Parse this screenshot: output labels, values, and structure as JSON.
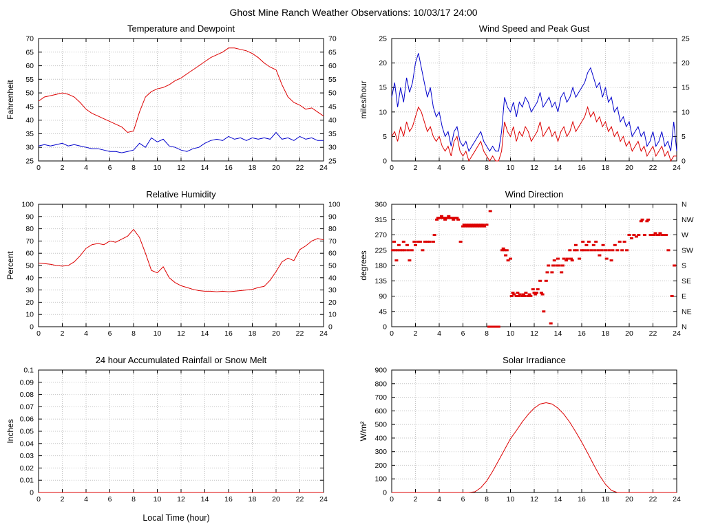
{
  "page_title": "Ghost Mine Ranch Weather Observations: 10/03/17 24:00",
  "x_axis": {
    "min": 0,
    "max": 24,
    "tick_step": 2,
    "label": "Local Time (hour)"
  },
  "colors": {
    "red": "#dd0000",
    "blue": "#0000cc",
    "grid": "#c4c4c4",
    "axis": "#000000"
  },
  "chart_data": [
    {
      "id": "temperature-dewpoint",
      "type": "line",
      "title": "Temperature and Dewpoint",
      "ylabel": "Fahrenheit",
      "ylim": [
        25,
        70
      ],
      "ytick_step": 5,
      "right_labels": "mirror",
      "x_start": 0,
      "x_step": 0.5,
      "series": [
        {
          "name": "temperature",
          "color": "#dd0000",
          "values": [
            47,
            48.5,
            49,
            49.5,
            50,
            49.5,
            48.5,
            46.5,
            44,
            42.5,
            41.5,
            40.5,
            39.5,
            38.5,
            37.5,
            35.5,
            36,
            43,
            48.5,
            50.5,
            51.5,
            52,
            53,
            54.5,
            55.5,
            57,
            58.5,
            60,
            61.5,
            63,
            64,
            65,
            66.5,
            66.5,
            66,
            65.5,
            64.5,
            63,
            61,
            59.5,
            58.5,
            53,
            48.5,
            46.5,
            45.5,
            44,
            44.5,
            43,
            41.5
          ]
        },
        {
          "name": "dewpoint",
          "color": "#0000cc",
          "values": [
            30.5,
            31,
            30.5,
            31,
            31.5,
            30.5,
            31,
            30.5,
            30,
            29.5,
            29.5,
            29,
            28.5,
            28.5,
            28,
            28.5,
            29,
            31.5,
            30,
            33.5,
            32,
            33,
            30.5,
            30,
            29,
            28.5,
            29.5,
            30,
            31.5,
            32.5,
            33,
            32.5,
            34,
            33,
            33.5,
            32.5,
            33.5,
            33,
            33.5,
            33,
            35.5,
            33,
            33.5,
            32.5,
            34,
            33,
            33.5,
            32.5,
            32.5
          ]
        }
      ]
    },
    {
      "id": "wind-speed-gust",
      "type": "line",
      "title": "Wind Speed and Peak Gust",
      "ylabel": "miles/hour",
      "ylim": [
        0,
        25
      ],
      "ytick_step": 5,
      "right_labels": "mirror",
      "x_start": 0,
      "x_step": 0.25,
      "series": [
        {
          "name": "peak-gust",
          "color": "#0000cc",
          "values": [
            13,
            16,
            11,
            15,
            12,
            17,
            14,
            16,
            20,
            22,
            19,
            16,
            13,
            15,
            11,
            9,
            10,
            7,
            5,
            6,
            3,
            6,
            7,
            4,
            3,
            4,
            2,
            3,
            4,
            5,
            6,
            4,
            3,
            2,
            3,
            2,
            2,
            6,
            13,
            11,
            10,
            12,
            9,
            12,
            11,
            13,
            12,
            10,
            11,
            12,
            14,
            11,
            12,
            13,
            11,
            12,
            10,
            13,
            14,
            12,
            13,
            15,
            13,
            14,
            15,
            16,
            18,
            19,
            17,
            15,
            16,
            13,
            15,
            12,
            13,
            10,
            11,
            8,
            9,
            7,
            8,
            5,
            6,
            7,
            5,
            6,
            3,
            4,
            6,
            3,
            4,
            6,
            3,
            4,
            2,
            8,
            2
          ]
        },
        {
          "name": "wind-speed",
          "color": "#dd0000",
          "values": [
            5,
            6,
            4,
            7,
            5,
            8,
            6,
            7,
            9,
            11,
            10,
            8,
            6,
            7,
            5,
            4,
            5,
            3,
            2,
            3,
            1,
            4,
            5,
            2,
            1,
            2,
            0,
            1,
            2,
            3,
            4,
            2,
            1,
            0,
            1,
            0,
            0,
            2,
            8,
            6,
            5,
            7,
            4,
            6,
            5,
            7,
            6,
            4,
            5,
            6,
            8,
            5,
            6,
            7,
            5,
            6,
            4,
            6,
            7,
            5,
            6,
            8,
            6,
            7,
            8,
            9,
            11,
            9,
            10,
            8,
            9,
            7,
            8,
            6,
            7,
            5,
            6,
            4,
            5,
            3,
            4,
            2,
            3,
            4,
            2,
            3,
            1,
            2,
            3,
            1,
            2,
            3,
            1,
            2,
            0,
            1,
            1
          ]
        }
      ]
    },
    {
      "id": "relative-humidity",
      "type": "line",
      "title": "Relative Humidity",
      "ylabel": "Percent",
      "ylim": [
        0,
        100
      ],
      "ytick_step": 10,
      "right_labels": "mirror",
      "x_start": 0,
      "x_step": 0.5,
      "series": [
        {
          "name": "humidity",
          "color": "#dd0000",
          "values": [
            52,
            51.5,
            51,
            50,
            49.5,
            50,
            53,
            58,
            64,
            67,
            68,
            67,
            70,
            69,
            71.5,
            74,
            79.5,
            73,
            60,
            46,
            44,
            49,
            40,
            36,
            33.5,
            32,
            30.5,
            29.5,
            29,
            29,
            28.5,
            29,
            28.5,
            29,
            29.5,
            30,
            30.5,
            32,
            33,
            38,
            45,
            53,
            56,
            54,
            63,
            66,
            70,
            72,
            71
          ]
        }
      ]
    },
    {
      "id": "wind-direction",
      "type": "scatter",
      "title": "Wind Direction",
      "ylabel": "degrees",
      "ylim": [
        0,
        360
      ],
      "ytick_step": 45,
      "right_labels": [
        "N",
        "NE",
        "E",
        "SE",
        "S",
        "SW",
        "W",
        "NW",
        "N"
      ],
      "color": "#dd0000",
      "points": [
        [
          0.1,
          225
        ],
        [
          0.2,
          250
        ],
        [
          0.3,
          225
        ],
        [
          0.4,
          195
        ],
        [
          0.5,
          225
        ],
        [
          0.6,
          240
        ],
        [
          0.7,
          225
        ],
        [
          0.9,
          225
        ],
        [
          1.0,
          250
        ],
        [
          1.1,
          225
        ],
        [
          1.3,
          240
        ],
        [
          1.4,
          225
        ],
        [
          1.5,
          195
        ],
        [
          1.7,
          225
        ],
        [
          1.9,
          250
        ],
        [
          2.0,
          240
        ],
        [
          2.2,
          250
        ],
        [
          2.4,
          250
        ],
        [
          2.6,
          225
        ],
        [
          2.8,
          250
        ],
        [
          3.0,
          250
        ],
        [
          3.2,
          250
        ],
        [
          3.5,
          250
        ],
        [
          3.6,
          270
        ],
        [
          3.8,
          315
        ],
        [
          3.9,
          320
        ],
        [
          4.0,
          320
        ],
        [
          4.1,
          320
        ],
        [
          4.2,
          325
        ],
        [
          4.3,
          320
        ],
        [
          4.4,
          320
        ],
        [
          4.5,
          315
        ],
        [
          4.6,
          320
        ],
        [
          4.7,
          320
        ],
        [
          4.8,
          325
        ],
        [
          4.9,
          320
        ],
        [
          5.0,
          320
        ],
        [
          5.1,
          320
        ],
        [
          5.2,
          315
        ],
        [
          5.3,
          320
        ],
        [
          5.4,
          320
        ],
        [
          5.5,
          320
        ],
        [
          5.6,
          315
        ],
        [
          5.8,
          250
        ],
        [
          6.0,
          295
        ],
        [
          6.1,
          300
        ],
        [
          6.2,
          295
        ],
        [
          6.3,
          300
        ],
        [
          6.4,
          295
        ],
        [
          6.5,
          300
        ],
        [
          6.6,
          295
        ],
        [
          6.7,
          300
        ],
        [
          6.8,
          295
        ],
        [
          6.9,
          300
        ],
        [
          7.0,
          295
        ],
        [
          7.1,
          300
        ],
        [
          7.2,
          295
        ],
        [
          7.3,
          300
        ],
        [
          7.4,
          295
        ],
        [
          7.5,
          300
        ],
        [
          7.6,
          295
        ],
        [
          7.7,
          300
        ],
        [
          7.8,
          295
        ],
        [
          8.0,
          300
        ],
        [
          8.2,
          0
        ],
        [
          8.3,
          340
        ],
        [
          8.35,
          0
        ],
        [
          8.4,
          0
        ],
        [
          8.5,
          0
        ],
        [
          8.6,
          0
        ],
        [
          8.7,
          0
        ],
        [
          8.8,
          0
        ],
        [
          9.0,
          0
        ],
        [
          9.3,
          225
        ],
        [
          9.4,
          230
        ],
        [
          9.5,
          225
        ],
        [
          9.6,
          210
        ],
        [
          9.7,
          225
        ],
        [
          9.8,
          195
        ],
        [
          10.0,
          200
        ],
        [
          10.1,
          90
        ],
        [
          10.2,
          100
        ],
        [
          10.3,
          95
        ],
        [
          10.5,
          90
        ],
        [
          10.6,
          100
        ],
        [
          10.7,
          90
        ],
        [
          10.8,
          95
        ],
        [
          11.0,
          90
        ],
        [
          11.1,
          95
        ],
        [
          11.2,
          90
        ],
        [
          11.3,
          100
        ],
        [
          11.5,
          90
        ],
        [
          11.6,
          95
        ],
        [
          11.7,
          90
        ],
        [
          11.9,
          110
        ],
        [
          12.0,
          100
        ],
        [
          12.1,
          95
        ],
        [
          12.2,
          100
        ],
        [
          12.3,
          110
        ],
        [
          12.5,
          135
        ],
        [
          12.6,
          100
        ],
        [
          12.7,
          95
        ],
        [
          12.8,
          45
        ],
        [
          13.0,
          135
        ],
        [
          13.1,
          160
        ],
        [
          13.2,
          180
        ],
        [
          13.4,
          10
        ],
        [
          13.5,
          160
        ],
        [
          13.6,
          180
        ],
        [
          13.7,
          195
        ],
        [
          13.9,
          180
        ],
        [
          14.0,
          200
        ],
        [
          14.1,
          180
        ],
        [
          14.3,
          160
        ],
        [
          14.4,
          180
        ],
        [
          14.5,
          200
        ],
        [
          14.7,
          195
        ],
        [
          14.8,
          200
        ],
        [
          15.0,
          225
        ],
        [
          15.1,
          200
        ],
        [
          15.2,
          195
        ],
        [
          15.4,
          225
        ],
        [
          15.5,
          240
        ],
        [
          15.6,
          225
        ],
        [
          15.8,
          200
        ],
        [
          16.0,
          225
        ],
        [
          16.1,
          250
        ],
        [
          16.2,
          225
        ],
        [
          16.4,
          240
        ],
        [
          16.5,
          225
        ],
        [
          16.6,
          250
        ],
        [
          16.8,
          225
        ],
        [
          17.0,
          240
        ],
        [
          17.1,
          225
        ],
        [
          17.2,
          250
        ],
        [
          17.4,
          225
        ],
        [
          17.5,
          210
        ],
        [
          17.7,
          225
        ],
        [
          17.8,
          240
        ],
        [
          18.0,
          225
        ],
        [
          18.1,
          200
        ],
        [
          18.3,
          225
        ],
        [
          18.5,
          195
        ],
        [
          18.6,
          225
        ],
        [
          18.8,
          240
        ],
        [
          19.0,
          225
        ],
        [
          19.2,
          250
        ],
        [
          19.4,
          225
        ],
        [
          19.6,
          250
        ],
        [
          19.8,
          225
        ],
        [
          20.0,
          270
        ],
        [
          20.2,
          260
        ],
        [
          20.4,
          270
        ],
        [
          20.6,
          265
        ],
        [
          20.8,
          270
        ],
        [
          21.0,
          310
        ],
        [
          21.1,
          315
        ],
        [
          21.3,
          270
        ],
        [
          21.5,
          310
        ],
        [
          21.6,
          315
        ],
        [
          21.8,
          270
        ],
        [
          22.0,
          270
        ],
        [
          22.1,
          270
        ],
        [
          22.2,
          275
        ],
        [
          22.4,
          270
        ],
        [
          22.5,
          270
        ],
        [
          22.6,
          275
        ],
        [
          22.8,
          270
        ],
        [
          23.0,
          270
        ],
        [
          23.1,
          270
        ],
        [
          23.3,
          225
        ],
        [
          23.6,
          90
        ],
        [
          23.8,
          180
        ]
      ]
    },
    {
      "id": "rainfall",
      "type": "line",
      "title": "24 hour Accumulated Rainfall or Snow Melt",
      "ylabel": "Inches",
      "ylim": [
        0,
        0.1
      ],
      "ytick_step": 0.01,
      "right_labels": null,
      "has_xlabel": true,
      "x_start": 0,
      "x_step": 0.5,
      "series": [
        {
          "name": "rainfall",
          "color": "#dd0000",
          "values": [
            0,
            0,
            0,
            0,
            0,
            0,
            0,
            0,
            0,
            0,
            0,
            0,
            0,
            0,
            0,
            0,
            0,
            0,
            0,
            0,
            0,
            0,
            0,
            0,
            0,
            0,
            0,
            0,
            0,
            0,
            0,
            0,
            0,
            0,
            0,
            0,
            0,
            0,
            0,
            0,
            0,
            0,
            0,
            0,
            0,
            0,
            0,
            0,
            0
          ]
        }
      ]
    },
    {
      "id": "solar-irradiance",
      "type": "line",
      "title": "Solar Irradiance",
      "ylabel": "W/m²",
      "ylim": [
        0,
        900
      ],
      "ytick_step": 100,
      "right_labels": null,
      "x_start": 0,
      "x_step": 0.5,
      "series": [
        {
          "name": "solar",
          "color": "#dd0000",
          "values": [
            0,
            0,
            0,
            0,
            0,
            0,
            0,
            0,
            0,
            0,
            0,
            0,
            0,
            0,
            5,
            35,
            85,
            155,
            235,
            315,
            395,
            455,
            520,
            575,
            620,
            650,
            660,
            650,
            620,
            575,
            515,
            445,
            370,
            290,
            205,
            125,
            60,
            15,
            0,
            0,
            0,
            0,
            0,
            0,
            0,
            0,
            0,
            0,
            0
          ]
        }
      ]
    }
  ]
}
